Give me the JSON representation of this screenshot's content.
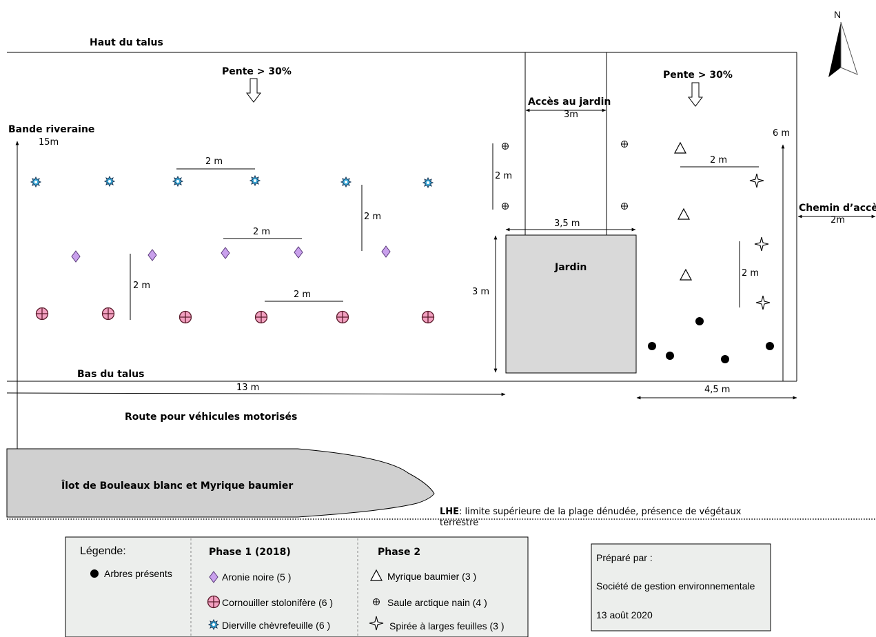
{
  "labels": {
    "north": "N",
    "haut_talus": "Haut du talus",
    "pente_left": "Pente > 30%",
    "pente_right": "Pente > 30%",
    "acces_jardin": "Accès au jardin",
    "acces_jardin_width": "3m",
    "bande_riveraine": "Bande riveraine",
    "bande_riveraine_width": "15m",
    "chemin_acces": "Chemin d’accès",
    "chemin_acces_width": "2m",
    "jardin": "Jardin",
    "bas_talus": "Bas du talus",
    "route": "Route pour véhicules motorisés",
    "ilot": "Îlot de Bouleaux blanc et Myrique baumier",
    "lhe_bold": "LHE",
    "lhe_line1": ": limite supérieure de la plage dénudée, présence de végétaux",
    "lhe_line2": "terrestre"
  },
  "dimensions": {
    "d_2m_top": "2 m",
    "d_2m_vert_left_middle": "2 m",
    "d_2m_aronie": "2 m",
    "d_2m_vert_aronie": "2 m",
    "d_2m_cornouiller": "2 m",
    "d_2m_saule_vert": "2 m",
    "d_3_5m": "3,5 m",
    "d_3m_jardin": "3 m",
    "d_2m_myrique": "2 m",
    "d_2m_spiree_vert": "2 m",
    "d_6m": "6 m",
    "d_13m": "13 m",
    "d_4_5m": "4,5 m"
  },
  "legend": {
    "title": "Légende:",
    "trees": "Arbres présents",
    "phase1_title": "Phase 1 (2018)",
    "phase1_items": [
      {
        "icon": "diamond-icon",
        "label": "Aronie noire  (5 )"
      },
      {
        "icon": "circle-cross-icon",
        "label": "Cornouiller stolonifère  (6 )"
      },
      {
        "icon": "starburst-icon",
        "label": "Dierville chèvrefeuille  (6 )"
      }
    ],
    "phase2_title": "Phase 2",
    "phase2_items": [
      {
        "icon": "triangle-icon",
        "label": "Myrique baumier  (3 )"
      },
      {
        "icon": "small-circle-plus-icon",
        "label": "Saule arctique nain  (4 )"
      },
      {
        "icon": "four-point-star-icon",
        "label": "Spirée à larges feuilles  (3 )"
      }
    ]
  },
  "prepared": {
    "label": "Préparé par :",
    "company": "Société de gestion environnementale",
    "date": "13 août 2020"
  },
  "colors": {
    "diamond": "#c9a0ec",
    "cornouiller": "#f2a0c0",
    "starburst": "#3aa8d8",
    "jardin_fill": "#d9d9d9",
    "ilot_fill": "#d0d0d0",
    "legend_fill": "#eceeec"
  }
}
